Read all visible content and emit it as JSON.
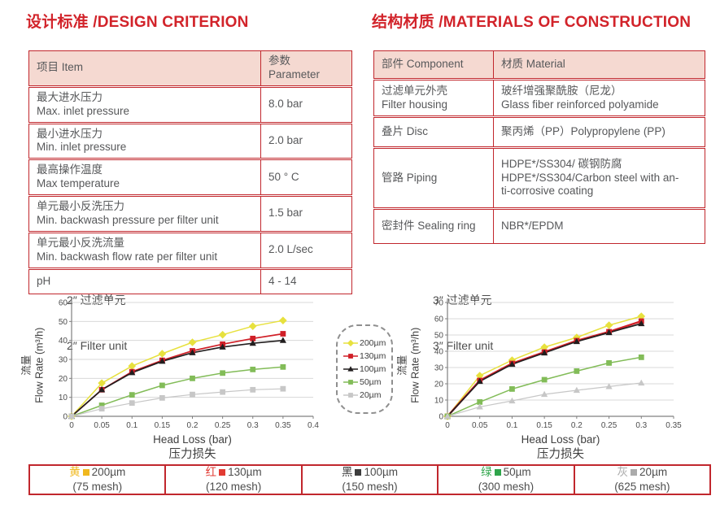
{
  "titles": {
    "design": "设计标准 /DESIGN CRITERION",
    "materials": "结构材质 /MATERIALS OF CONSTRUCTION"
  },
  "design_table": {
    "headers": [
      "项目 Item",
      "参数 Parameter"
    ],
    "rows": [
      {
        "item_zh": "最大进水压力",
        "item_en": "Max. inlet pressure",
        "value": "8.0 bar"
      },
      {
        "item_zh": "最小进水压力",
        "item_en": "Min. inlet pressure",
        "value": "2.0 bar"
      },
      {
        "item_zh": "最高操作温度",
        "item_en": "Max temperature",
        "value": "50 ° C"
      },
      {
        "item_zh": "单元最小反洗压力",
        "item_en": "Min. backwash pressure per filter unit",
        "value": "1.5 bar"
      },
      {
        "item_zh": "单元最小反洗流量",
        "item_en": "Min. backwash flow rate per filter unit",
        "value": "2.0 L/sec"
      },
      {
        "item_zh": "pH",
        "item_en": "",
        "value": "4 - 14"
      }
    ]
  },
  "materials_table": {
    "headers": [
      "部件 Component",
      "材质 Material"
    ],
    "rows": [
      {
        "component_lines": [
          "过滤单元外壳",
          "Filter housing"
        ],
        "material_lines": [
          "玻纤增强聚酰胺（尼龙）",
          "Glass fiber reinforced polyamide",
          ""
        ]
      },
      {
        "component_lines": [
          "叠片 Disc",
          ""
        ],
        "material_lines": [
          "聚丙烯（PP）Polypropylene (PP)",
          "",
          ""
        ]
      },
      {
        "component_lines": [
          "管路 Piping",
          ""
        ],
        "material_lines": [
          "HDPE*/SS304/ 碳钢防腐",
          "HDPE*/SS304/Carbon steel with an-",
          "ti-corrosive coating"
        ]
      },
      {
        "component_lines": [
          "密封件 Sealing ring",
          ""
        ],
        "material_lines": [
          "NBR*/EPDM",
          "",
          ""
        ]
      }
    ]
  },
  "chart_data": [
    {
      "type": "line",
      "title_zh": "2″ 过滤单元",
      "title_en": "2″ Filter unit",
      "ylabel_zh": "流量",
      "ylabel_en": "Flow Rate (m³/h)",
      "xlabel": "Head Loss (bar)",
      "xlabel_zh": "压力损失",
      "xlim": [
        0,
        0.4
      ],
      "ylim": [
        0,
        60
      ],
      "xticks": [
        "0",
        "0.05",
        "0.1",
        "0.15",
        "0.2",
        "0.25",
        "0.3",
        "0.35",
        "0.4"
      ],
      "yticks": [
        0,
        10,
        20,
        30,
        40,
        50,
        60
      ],
      "grid": "horizontal",
      "x": [
        0,
        0.05,
        0.1,
        0.15,
        0.2,
        0.25,
        0.3,
        0.35
      ],
      "series": [
        {
          "name": "200µm",
          "color": "#e7e13e",
          "marker": "diamond",
          "lw": 1.5,
          "values": [
            0,
            17.5,
            26.5,
            33,
            39,
            43,
            47.5,
            50.5
          ]
        },
        {
          "name": "130µm",
          "color": "#d01f27",
          "marker": "square",
          "lw": 1.7,
          "values": [
            0,
            14,
            23.5,
            29.5,
            34.5,
            38,
            41,
            43.5
          ]
        },
        {
          "name": "100µm",
          "color": "#221e1f",
          "marker": "triangle",
          "lw": 1.7,
          "values": [
            0,
            14,
            23,
            29,
            33.5,
            36.5,
            38.5,
            40
          ]
        },
        {
          "name": "50µm",
          "color": "#82bc58",
          "marker": "square",
          "lw": 1.5,
          "values": [
            0,
            5.8,
            11.3,
            16.3,
            20,
            22.8,
            24.7,
            26
          ]
        },
        {
          "name": "20µm",
          "color": "#c7c7c7",
          "marker": "square",
          "lw": 1.2,
          "values": [
            0,
            4,
            7,
            9.7,
            11.5,
            12.8,
            14,
            14.5
          ]
        }
      ]
    },
    {
      "type": "line",
      "title_zh": "3″ 过滤单元",
      "title_en": "3″ Filter unit",
      "ylabel_zh": "流量",
      "ylabel_en": "Flow Rate (m³/h)",
      "xlabel": "Head Loss (bar)",
      "xlabel_zh": "压力损失",
      "xlim": [
        0,
        0.35
      ],
      "ylim": [
        0,
        70
      ],
      "xticks": [
        "0",
        "0.05",
        "0.1",
        "0.15",
        "0.2",
        "0.25",
        "0.3",
        "0.35"
      ],
      "yticks": [
        0,
        10,
        20,
        30,
        40,
        50,
        60,
        70
      ],
      "grid": "horizontal",
      "x": [
        0,
        0.05,
        0.1,
        0.15,
        0.2,
        0.25,
        0.3
      ],
      "series": [
        {
          "name": "200µm",
          "color": "#e7e13e",
          "marker": "diamond",
          "lw": 1.5,
          "values": [
            0,
            25,
            34.5,
            42.5,
            48.5,
            56,
            61.5
          ]
        },
        {
          "name": "130µm",
          "color": "#d01f27",
          "marker": "square",
          "lw": 2.4,
          "values": [
            0,
            22,
            32.5,
            39.5,
            46.5,
            52,
            58.5
          ]
        },
        {
          "name": "100µm",
          "color": "#221e1f",
          "marker": "triangle",
          "lw": 1.7,
          "values": [
            0,
            21.5,
            32,
            39,
            46,
            51.5,
            57
          ]
        },
        {
          "name": "50µm",
          "color": "#82bc58",
          "marker": "square",
          "lw": 1.5,
          "values": [
            0,
            8.8,
            16.8,
            22.5,
            27.8,
            32.8,
            36.3
          ]
        },
        {
          "name": "20µm",
          "color": "#c7c7c7",
          "marker": "triangle",
          "lw": 1.2,
          "values": [
            0,
            5.8,
            9.5,
            13.5,
            16,
            18.3,
            20.5
          ]
        }
      ]
    }
  ],
  "legend": {
    "items": [
      {
        "label": "200µm",
        "color": "#e7e13e",
        "marker": "diamond"
      },
      {
        "label": "130µm",
        "color": "#d01f27",
        "marker": "square"
      },
      {
        "label": "100µm",
        "color": "#221e1f",
        "marker": "triangle"
      },
      {
        "label": "50µm",
        "color": "#82bc58",
        "marker": "square"
      },
      {
        "label": "20µm",
        "color": "#c7c7c7",
        "marker": "square"
      }
    ]
  },
  "bottom_legend": {
    "cells": [
      {
        "name_zh": "黄",
        "color": "#f0b81f",
        "size": "200µm",
        "mesh": "(75 mesh)"
      },
      {
        "name_zh": "红",
        "color": "#e23b33",
        "size": "130µm",
        "mesh": "(120 mesh)"
      },
      {
        "name_zh": "黑",
        "color": "#3d3d3d",
        "size": "100µm",
        "mesh": "(150 mesh)"
      },
      {
        "name_zh": "绿",
        "color": "#2fa54b",
        "size": "50µm",
        "mesh": "(300 mesh)"
      },
      {
        "name_zh": "灰",
        "color": "#ababab",
        "size": "20µm",
        "mesh": "(625 mesh)"
      }
    ]
  },
  "colors": {
    "accent_red": "#d2232a",
    "table_border": "#c1272d",
    "header_bg": "#f5d9d1"
  }
}
